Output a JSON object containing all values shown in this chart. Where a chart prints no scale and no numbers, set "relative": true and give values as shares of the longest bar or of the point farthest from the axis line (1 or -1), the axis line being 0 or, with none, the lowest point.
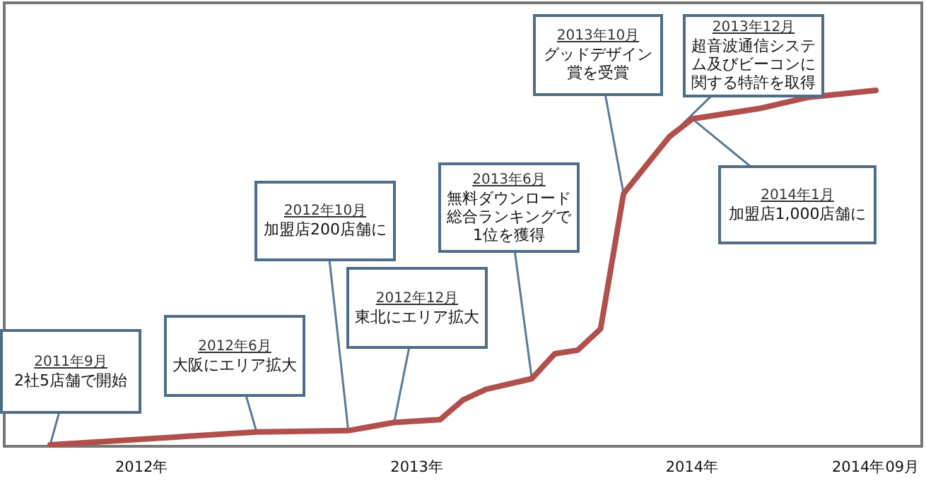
{
  "chart_data": {
    "type": "line",
    "relative": true,
    "color": "#b0504c",
    "x": [
      "2011-09",
      "2012-06",
      "2012-10",
      "2012-12",
      "2013-02",
      "2013-03",
      "2013-04",
      "2013-06",
      "2013-07",
      "2013-08",
      "2013-09",
      "2013-10",
      "2013-11",
      "2013-12",
      "2014-01",
      "2014-04",
      "2014-06",
      "2014-09"
    ],
    "values": [
      0.004,
      0.04,
      0.044,
      0.067,
      0.075,
      0.13,
      0.16,
      0.19,
      0.26,
      0.27,
      0.33,
      0.71,
      0.79,
      0.87,
      0.92,
      0.95,
      0.98,
      1
    ],
    "xlim": [
      "2011-07",
      "2014-11"
    ],
    "xticks": [
      {
        "value": "2012-01",
        "label": "2012年"
      },
      {
        "value": "2013-01",
        "label": "2013年"
      },
      {
        "value": "2014-01",
        "label": "2014年"
      },
      {
        "value": "2014-09",
        "label": "2014年09月"
      }
    ],
    "annotations": [
      "2011年9月",
      {
        "text": "2社5店舗で開始",
        "x": "2011-09",
        "y": 0.004
      },
      "2012年6月",
      {
        "text": "大阪にエリア拡大",
        "x": "2012-06",
        "y": 0.04
      },
      "2012年10月",
      {
        "text": "加盟店200店舗に",
        "x": "2012-10",
        "y": 0.044
      },
      "2012年12月",
      {
        "text": "東北にエリア拡大",
        "x": "2012-12",
        "y": 0.067
      },
      "2013年6月",
      {
        "text": "無料ダウンロード総合ランキングで1位を獲得",
        "x": "2013-06",
        "y": 0.19
      },
      "2013年10月",
      {
        "text": "グッドデザイン賞を受賞",
        "x": "2013-10",
        "y": 0.71
      },
      "2013年12月",
      {
        "text": "超音波通信システム及びビーコンに関する特許を取得",
        "x": "2013-12",
        "y": 0.87
      },
      "2014年1月",
      {
        "text": "加盟店1,000店舗に",
        "x": "2014-01",
        "y": 0.92
      }
    ]
  }
}
